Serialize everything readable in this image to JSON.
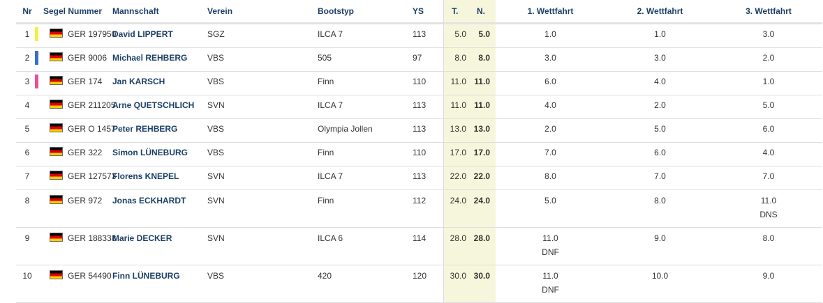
{
  "headers": {
    "nr": "Nr",
    "segel": "Segel Nummer",
    "mannschaft": "Mannschaft",
    "verein": "Verein",
    "bootstyp": "Bootstyp",
    "ys": "YS",
    "t": "T.",
    "n": "N.",
    "w1": "1. Wettfahrt",
    "w2": "2. Wettfahrt",
    "w3": "3. Wettfahrt"
  },
  "colors": {
    "yellow": "#f4ee44",
    "blue": "#3570c9",
    "pink": "#ea4f96"
  },
  "rows": [
    {
      "nr": "1",
      "sail": "GER 197950",
      "name": "David LIPPERT",
      "club": "SGZ",
      "boat": "ILCA 7",
      "ys": "113",
      "t": "5.0",
      "n": "5.0",
      "w1": "1.0",
      "w1b": "",
      "w2": "1.0",
      "w2b": "",
      "w3": "3.0",
      "w3b": ""
    },
    {
      "nr": "2",
      "sail": "GER 9006",
      "name": "Michael REHBERG",
      "club": "VBS",
      "boat": "505",
      "ys": "97",
      "t": "8.0",
      "n": "8.0",
      "w1": "3.0",
      "w1b": "",
      "w2": "3.0",
      "w2b": "",
      "w3": "2.0",
      "w3b": ""
    },
    {
      "nr": "3",
      "sail": "GER 174",
      "name": "Jan KARSCH",
      "club": "VBS",
      "boat": "Finn",
      "ys": "110",
      "t": "11.0",
      "n": "11.0",
      "w1": "6.0",
      "w1b": "",
      "w2": "4.0",
      "w2b": "",
      "w3": "1.0",
      "w3b": ""
    },
    {
      "nr": "4",
      "sail": "GER 211205",
      "name": "Arne QUETSCHLICH",
      "club": "SVN",
      "boat": "ILCA 7",
      "ys": "113",
      "t": "11.0",
      "n": "11.0",
      "w1": "4.0",
      "w1b": "",
      "w2": "2.0",
      "w2b": "",
      "w3": "5.0",
      "w3b": ""
    },
    {
      "nr": "5",
      "sail": "GER O 1457",
      "name": "Peter REHBERG",
      "club": "VBS",
      "boat": "Olympia Jollen",
      "ys": "113",
      "t": "13.0",
      "n": "13.0",
      "w1": "2.0",
      "w1b": "",
      "w2": "5.0",
      "w2b": "",
      "w3": "6.0",
      "w3b": ""
    },
    {
      "nr": "6",
      "sail": "GER 322",
      "name": "Simon LÜNEBURG",
      "club": "VBS",
      "boat": "Finn",
      "ys": "110",
      "t": "17.0",
      "n": "17.0",
      "w1": "7.0",
      "w1b": "",
      "w2": "6.0",
      "w2b": "",
      "w3": "4.0",
      "w3b": ""
    },
    {
      "nr": "7",
      "sail": "GER 127573",
      "name": "Florens KNEPEL",
      "club": "SVN",
      "boat": "ILCA 7",
      "ys": "113",
      "t": "22.0",
      "n": "22.0",
      "w1": "8.0",
      "w1b": "",
      "w2": "7.0",
      "w2b": "",
      "w3": "7.0",
      "w3b": ""
    },
    {
      "nr": "8",
      "sail": "GER 972",
      "name": "Jonas ECKHARDT",
      "club": "SVN",
      "boat": "Finn",
      "ys": "112",
      "t": "24.0",
      "n": "24.0",
      "w1": "5.0",
      "w1b": "",
      "w2": "8.0",
      "w2b": "",
      "w3": "11.0",
      "w3b": "DNS"
    },
    {
      "nr": "9",
      "sail": "GER 188338",
      "name": "Marie DECKER",
      "club": "SVN",
      "boat": "ILCA 6",
      "ys": "114",
      "t": "28.0",
      "n": "28.0",
      "w1": "11.0",
      "w1b": "DNF",
      "w2": "9.0",
      "w2b": "",
      "w3": "8.0",
      "w3b": ""
    },
    {
      "nr": "10",
      "sail": "GER 54490",
      "name": "Finn LÜNEBURG",
      "club": "VBS",
      "boat": "420",
      "ys": "120",
      "t": "30.0",
      "n": "30.0",
      "w1": "11.0",
      "w1b": "DNF",
      "w2": "10.0",
      "w2b": "",
      "w3": "9.0",
      "w3b": ""
    }
  ]
}
